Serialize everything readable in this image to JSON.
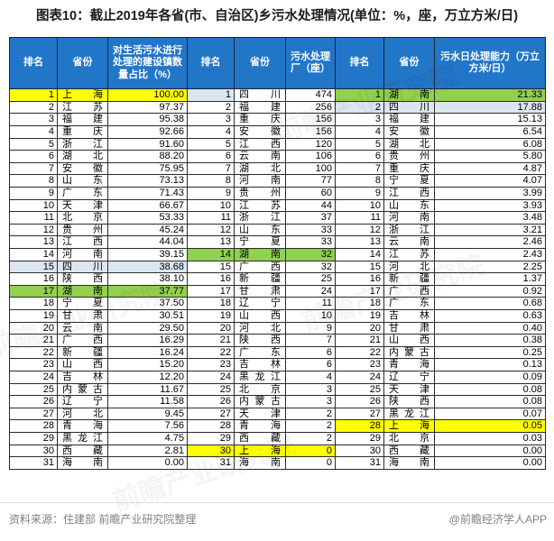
{
  "title": "图表10：截止2019年各省(市、自治区)乡污水处理情况(单位：%，座，万立方米/日)",
  "watermark": "前瞻产业研究院",
  "footer": {
    "source": "资料来源：住建部 前瞻产业研究院整理",
    "credit": "@前瞻经济学人APP"
  },
  "colors": {
    "header_bg": "#2276C8",
    "highlight_yellow": "#FFFF00",
    "highlight_green": "#92D050",
    "highlight_blue": "#DCE6F1"
  },
  "chart_data": {
    "type": "table",
    "title": "图表10：截止2019年各省(市、自治区)乡污水处理情况(单位：%，座，万立方米/日)",
    "layout": "three table groups side by side, 31 ranked rows each; highlighted rows: 上海=yellow, 湖南=green, 四川=light blue",
    "tables": [
      {
        "headers": [
          "排名",
          "省份",
          "对生活污水进行处理的建设镇数量占比（%）"
        ],
        "rows": [
          [
            "1",
            "上海",
            "100.00",
            "yellow"
          ],
          [
            "2",
            "江苏",
            "97.37",
            ""
          ],
          [
            "3",
            "福建",
            "95.38",
            ""
          ],
          [
            "4",
            "重庆",
            "92.66",
            ""
          ],
          [
            "5",
            "浙江",
            "91.60",
            ""
          ],
          [
            "6",
            "湖北",
            "88.20",
            ""
          ],
          [
            "7",
            "安徽",
            "75.95",
            ""
          ],
          [
            "8",
            "山东",
            "73.13",
            ""
          ],
          [
            "9",
            "广东",
            "71.43",
            ""
          ],
          [
            "10",
            "天津",
            "66.67",
            ""
          ],
          [
            "11",
            "北京",
            "53.33",
            ""
          ],
          [
            "12",
            "贵州",
            "45.24",
            ""
          ],
          [
            "13",
            "江西",
            "44.04",
            ""
          ],
          [
            "14",
            "河南",
            "39.15",
            ""
          ],
          [
            "15",
            "四川",
            "38.68",
            "blue"
          ],
          [
            "16",
            "陕西",
            "38.10",
            ""
          ],
          [
            "17",
            "湖南",
            "37.77",
            "green"
          ],
          [
            "18",
            "宁夏",
            "37.50",
            ""
          ],
          [
            "19",
            "甘肃",
            "30.51",
            ""
          ],
          [
            "20",
            "云南",
            "29.50",
            ""
          ],
          [
            "21",
            "广西",
            "16.29",
            ""
          ],
          [
            "22",
            "新疆",
            "16.24",
            ""
          ],
          [
            "23",
            "山西",
            "15.20",
            ""
          ],
          [
            "24",
            "吉林",
            "12.20",
            ""
          ],
          [
            "25",
            "内蒙古",
            "11.67",
            ""
          ],
          [
            "26",
            "辽宁",
            "11.58",
            ""
          ],
          [
            "27",
            "河北",
            "9.45",
            ""
          ],
          [
            "28",
            "青海",
            "7.56",
            ""
          ],
          [
            "29",
            "黑龙江",
            "4.75",
            ""
          ],
          [
            "30",
            "西藏",
            "2.81",
            ""
          ],
          [
            "31",
            "海南",
            "0.00",
            ""
          ]
        ]
      },
      {
        "headers": [
          "排名",
          "省份",
          "污水处理厂（座）"
        ],
        "rows": [
          [
            "1",
            "四川",
            "474",
            "blue-rank"
          ],
          [
            "2",
            "福建",
            "256",
            ""
          ],
          [
            "3",
            "重庆",
            "156",
            ""
          ],
          [
            "4",
            "安徽",
            "156",
            ""
          ],
          [
            "5",
            "江西",
            "120",
            ""
          ],
          [
            "6",
            "云南",
            "106",
            ""
          ],
          [
            "7",
            "湖北",
            "100",
            ""
          ],
          [
            "8",
            "河南",
            "77",
            ""
          ],
          [
            "9",
            "贵州",
            "60",
            ""
          ],
          [
            "10",
            "江苏",
            "44",
            ""
          ],
          [
            "11",
            "浙江",
            "37",
            ""
          ],
          [
            "12",
            "山东",
            "33",
            ""
          ],
          [
            "13",
            "宁夏",
            "33",
            ""
          ],
          [
            "14",
            "湖南",
            "32",
            "green"
          ],
          [
            "15",
            "广西",
            "32",
            ""
          ],
          [
            "16",
            "新疆",
            "25",
            ""
          ],
          [
            "17",
            "甘肃",
            "24",
            ""
          ],
          [
            "18",
            "辽宁",
            "11",
            ""
          ],
          [
            "19",
            "山西",
            "10",
            ""
          ],
          [
            "20",
            "河北",
            "9",
            ""
          ],
          [
            "21",
            "陕西",
            "7",
            ""
          ],
          [
            "22",
            "广东",
            "6",
            ""
          ],
          [
            "23",
            "吉林",
            "6",
            ""
          ],
          [
            "24",
            "黑龙江",
            "4",
            ""
          ],
          [
            "25",
            "北京",
            "3",
            ""
          ],
          [
            "26",
            "内蒙古",
            "3",
            ""
          ],
          [
            "27",
            "天津",
            "2",
            ""
          ],
          [
            "28",
            "青海",
            "2",
            ""
          ],
          [
            "29",
            "西藏",
            "2",
            ""
          ],
          [
            "30",
            "上海",
            "0",
            "yellow"
          ],
          [
            "31",
            "海南",
            "0",
            ""
          ]
        ]
      },
      {
        "headers": [
          "排名",
          "省份",
          "污水日处理能力（万立方米/日）"
        ],
        "rows": [
          [
            "1",
            "湖南",
            "21.33",
            "green"
          ],
          [
            "2",
            "四川",
            "17.88",
            "blue"
          ],
          [
            "3",
            "福建",
            "15.13",
            ""
          ],
          [
            "4",
            "安徽",
            "6.54",
            ""
          ],
          [
            "5",
            "湖北",
            "6.08",
            ""
          ],
          [
            "6",
            "贵州",
            "5.80",
            ""
          ],
          [
            "7",
            "重庆",
            "4.87",
            ""
          ],
          [
            "8",
            "宁夏",
            "4.07",
            ""
          ],
          [
            "9",
            "江西",
            "3.99",
            ""
          ],
          [
            "10",
            "山东",
            "3.93",
            ""
          ],
          [
            "11",
            "河南",
            "3.48",
            ""
          ],
          [
            "12",
            "浙江",
            "3.21",
            ""
          ],
          [
            "13",
            "云南",
            "2.46",
            ""
          ],
          [
            "14",
            "江苏",
            "2.43",
            ""
          ],
          [
            "15",
            "河北",
            "2.25",
            ""
          ],
          [
            "16",
            "新疆",
            "1.37",
            ""
          ],
          [
            "17",
            "广西",
            "0.92",
            ""
          ],
          [
            "18",
            "广东",
            "0.68",
            ""
          ],
          [
            "19",
            "吉林",
            "0.63",
            ""
          ],
          [
            "20",
            "甘肃",
            "0.40",
            ""
          ],
          [
            "21",
            "山西",
            "0.38",
            ""
          ],
          [
            "22",
            "内蒙古",
            "0.25",
            ""
          ],
          [
            "23",
            "青海",
            "0.13",
            ""
          ],
          [
            "24",
            "辽宁",
            "0.09",
            ""
          ],
          [
            "25",
            "天津",
            "0.08",
            ""
          ],
          [
            "26",
            "陕西",
            "0.08",
            ""
          ],
          [
            "27",
            "黑龙江",
            "0.07",
            ""
          ],
          [
            "28",
            "上海",
            "0.05",
            "yellow"
          ],
          [
            "29",
            "北京",
            "0.03",
            ""
          ],
          [
            "30",
            "西藏",
            "0.00",
            ""
          ],
          [
            "31",
            "海南",
            "0.00",
            ""
          ]
        ]
      }
    ]
  }
}
